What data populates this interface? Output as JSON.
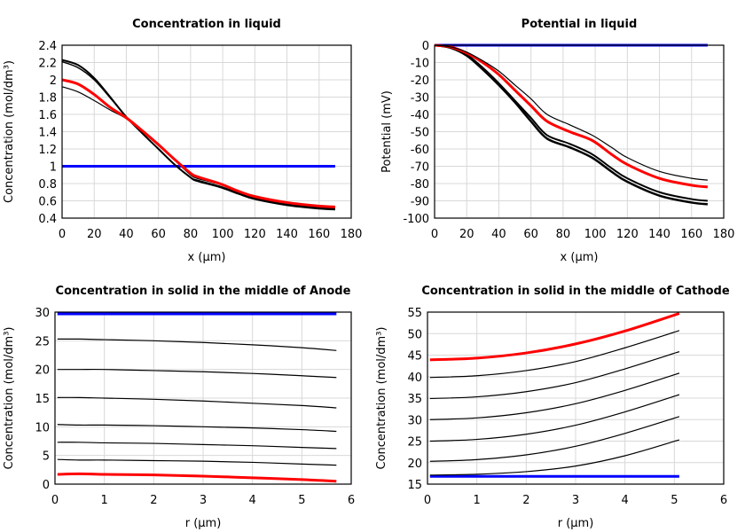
{
  "chart_data": [
    {
      "type": "line",
      "title": "Concentration in liquid",
      "xlabel": "x (µm)",
      "ylabel": "Concentration (mol/dm³)",
      "xlim": [
        0,
        180
      ],
      "ylim": [
        0.4,
        2.4
      ],
      "xticks": [
        0,
        20,
        40,
        60,
        80,
        100,
        120,
        140,
        160,
        180
      ],
      "yticks": [
        0.4,
        0.6,
        0.8,
        1,
        1.2,
        1.4,
        1.6,
        1.8,
        2,
        2.2,
        2.4
      ],
      "grid": true,
      "x": [
        0,
        10,
        20,
        30,
        40,
        50,
        60,
        70,
        80,
        84,
        98,
        110,
        120,
        140,
        160,
        170
      ],
      "series": [
        {
          "color": "#0000ff",
          "width": 3,
          "values": [
            1,
            1,
            1,
            1,
            1,
            1,
            1,
            1,
            1,
            1,
            1,
            1,
            1,
            1,
            1,
            1
          ]
        },
        {
          "color": "#000000",
          "width": 2,
          "values": [
            2.23,
            2.17,
            2.02,
            1.8,
            1.57,
            1.38,
            1.2,
            1.02,
            0.87,
            0.83,
            0.76,
            0.68,
            0.62,
            0.55,
            0.51,
            0.5
          ]
        },
        {
          "color": "#000000",
          "width": 1.5,
          "values": [
            2.21,
            2.14,
            2.0,
            1.79,
            1.57,
            1.38,
            1.2,
            1.02,
            0.87,
            0.84,
            0.77,
            0.69,
            0.63,
            0.56,
            0.52,
            0.51
          ]
        },
        {
          "color": "#000000",
          "width": 1.2,
          "values": [
            1.92,
            1.86,
            1.76,
            1.65,
            1.55,
            1.4,
            1.24,
            1.07,
            0.9,
            0.86,
            0.79,
            0.7,
            0.64,
            0.57,
            0.53,
            0.52
          ]
        },
        {
          "color": "#ff0000",
          "width": 3,
          "values": [
            2.0,
            1.95,
            1.83,
            1.68,
            1.56,
            1.41,
            1.25,
            1.08,
            0.92,
            0.88,
            0.8,
            0.71,
            0.65,
            0.58,
            0.54,
            0.53
          ]
        }
      ]
    },
    {
      "type": "line",
      "title": "Potential in liquid",
      "xlabel": "x (µm)",
      "ylabel": "Potential (mV)",
      "xlim": [
        0,
        180
      ],
      "ylim": [
        -100,
        0
      ],
      "xticks": [
        0,
        20,
        40,
        60,
        80,
        100,
        120,
        140,
        160,
        180
      ],
      "yticks": [
        -100,
        -90,
        -80,
        -70,
        -60,
        -50,
        -40,
        -30,
        -20,
        -10,
        0
      ],
      "grid": true,
      "x": [
        0,
        10,
        20,
        30,
        40,
        50,
        60,
        70,
        84,
        98,
        110,
        120,
        140,
        160,
        170
      ],
      "series": [
        {
          "color": "#0000ff",
          "width": 3,
          "values": [
            0,
            0,
            0,
            0,
            0,
            0,
            0,
            0,
            0,
            0,
            0,
            0,
            0,
            0,
            0
          ]
        },
        {
          "color": "#000000",
          "width": 2.5,
          "values": [
            0,
            -1.5,
            -6,
            -14,
            -23,
            -33,
            -44,
            -54,
            -59,
            -65,
            -73,
            -79,
            -87,
            -91,
            -92
          ]
        },
        {
          "color": "#000000",
          "width": 2,
          "values": [
            0,
            -1.5,
            -5.5,
            -13,
            -22,
            -32,
            -42,
            -52,
            -57,
            -63,
            -71,
            -77,
            -85,
            -89,
            -90
          ]
        },
        {
          "color": "#ff0000",
          "width": 3,
          "values": [
            0,
            -1,
            -4.5,
            -10,
            -17,
            -26,
            -35,
            -44,
            -50,
            -55,
            -63,
            -69,
            -77,
            -81,
            -82
          ]
        },
        {
          "color": "#000000",
          "width": 1.2,
          "values": [
            0,
            -1,
            -4,
            -9,
            -15,
            -23,
            -31,
            -40,
            -46,
            -52,
            -59,
            -65,
            -73,
            -77,
            -78
          ]
        }
      ]
    },
    {
      "type": "line",
      "title": "Concentration in solid in the middle of Anode",
      "xlabel": "r (µm)",
      "ylabel": "Concentration (mol/dm³)",
      "xlim": [
        0,
        6
      ],
      "ylim": [
        0,
        30
      ],
      "xticks": [
        0,
        1,
        2,
        3,
        4,
        5,
        6
      ],
      "yticks": [
        0,
        5,
        10,
        15,
        20,
        25,
        30
      ],
      "grid": true,
      "x": [
        0.05,
        0.5,
        1,
        2,
        3,
        4,
        5,
        5.7
      ],
      "series": [
        {
          "color": "#0000ff",
          "width": 3,
          "values": [
            29.7,
            29.7,
            29.7,
            29.7,
            29.7,
            29.7,
            29.7,
            29.7
          ]
        },
        {
          "color": "#000000",
          "width": 1.2,
          "values": [
            25.3,
            25.3,
            25.2,
            25.0,
            24.7,
            24.3,
            23.8,
            23.3
          ]
        },
        {
          "color": "#000000",
          "width": 1.2,
          "values": [
            20.0,
            20.0,
            20.0,
            19.8,
            19.6,
            19.3,
            18.9,
            18.6
          ]
        },
        {
          "color": "#000000",
          "width": 1.2,
          "values": [
            15.1,
            15.1,
            15.0,
            14.8,
            14.5,
            14.1,
            13.7,
            13.3
          ]
        },
        {
          "color": "#000000",
          "width": 1.2,
          "values": [
            10.4,
            10.3,
            10.3,
            10.2,
            10.0,
            9.8,
            9.5,
            9.2
          ]
        },
        {
          "color": "#000000",
          "width": 1.2,
          "values": [
            7.3,
            7.3,
            7.2,
            7.1,
            6.9,
            6.7,
            6.4,
            6.2
          ]
        },
        {
          "color": "#000000",
          "width": 1.2,
          "values": [
            4.3,
            4.2,
            4.2,
            4.1,
            4.0,
            3.8,
            3.5,
            3.3
          ]
        },
        {
          "color": "#ff0000",
          "width": 3,
          "values": [
            1.7,
            1.8,
            1.7,
            1.6,
            1.4,
            1.1,
            0.8,
            0.5
          ]
        }
      ]
    },
    {
      "type": "line",
      "title": "Concentration in solid in the middle of Cathode",
      "xlabel": "r (µm)",
      "ylabel": "Concentration (mol/dm³)",
      "xlim": [
        0,
        6
      ],
      "ylim": [
        15,
        55
      ],
      "xticks": [
        0,
        1,
        2,
        3,
        4,
        5,
        6
      ],
      "yticks": [
        15,
        20,
        25,
        30,
        35,
        40,
        45,
        50,
        55
      ],
      "grid": true,
      "x": [
        0.05,
        1,
        2,
        3,
        4,
        5.1
      ],
      "series": [
        {
          "color": "#0000ff",
          "width": 3,
          "values": [
            16.8,
            16.8,
            16.8,
            16.8,
            16.8,
            16.8
          ]
        },
        {
          "color": "#000000",
          "width": 1.2,
          "values": [
            17.1,
            17.3,
            17.9,
            19.2,
            21.6,
            25.3
          ]
        },
        {
          "color": "#000000",
          "width": 1.2,
          "values": [
            20.3,
            20.7,
            21.8,
            23.8,
            26.8,
            30.7
          ]
        },
        {
          "color": "#000000",
          "width": 1.2,
          "values": [
            25.0,
            25.4,
            26.6,
            28.7,
            31.8,
            35.8
          ]
        },
        {
          "color": "#000000",
          "width": 1.2,
          "values": [
            30.0,
            30.4,
            31.6,
            33.7,
            36.8,
            40.8
          ]
        },
        {
          "color": "#000000",
          "width": 1.2,
          "values": [
            34.9,
            35.3,
            36.5,
            38.6,
            41.8,
            45.8
          ]
        },
        {
          "color": "#000000",
          "width": 1.2,
          "values": [
            39.8,
            40.2,
            41.4,
            43.5,
            46.7,
            50.7
          ]
        },
        {
          "color": "#ff0000",
          "width": 3,
          "values": [
            43.9,
            44.3,
            45.5,
            47.6,
            50.6,
            54.7
          ]
        }
      ]
    }
  ]
}
